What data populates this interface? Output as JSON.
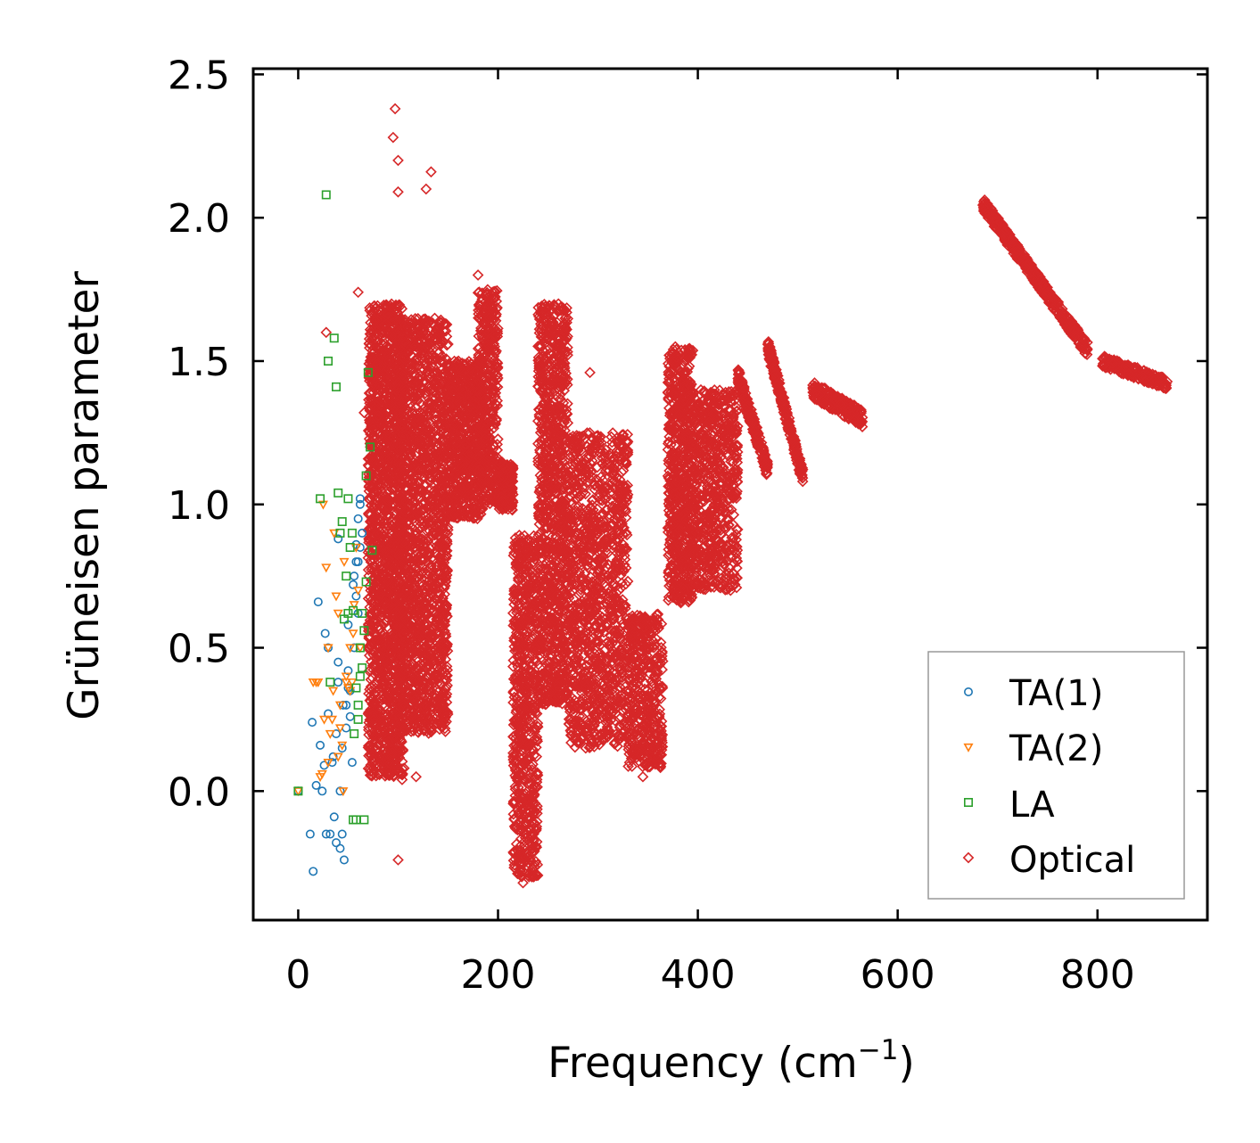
{
  "chart_data": {
    "type": "scatter",
    "title": "",
    "xlabel": "Frequency (cm",
    "xlabel_sup": "−1",
    "xlabel_tail": ")",
    "ylabel": "Grüneisen parameter",
    "xlim": [
      -45,
      910
    ],
    "ylim": [
      -0.45,
      2.52
    ],
    "xticks": [
      0,
      200,
      400,
      600,
      800
    ],
    "xtick_labels": [
      "0",
      "200",
      "400",
      "600",
      "800"
    ],
    "yticks": [
      0.0,
      0.5,
      1.0,
      1.5,
      2.0,
      2.5
    ],
    "ytick_labels": [
      "0.0",
      "0.5",
      "1.0",
      "1.5",
      "2.0",
      "2.5"
    ],
    "grid": false,
    "legend_position": "lower-right",
    "series": [
      {
        "name": "TA(1)",
        "color": "#1f77b4",
        "marker": "circle",
        "x": [
          0,
          12,
          15,
          18,
          20,
          24,
          27,
          30,
          32,
          35,
          38,
          40,
          42,
          45,
          48,
          50,
          52,
          55,
          58,
          60,
          62,
          64,
          14,
          28,
          34,
          40,
          46,
          52,
          56,
          60,
          62,
          30,
          38,
          44,
          50,
          58,
          36,
          42,
          48,
          54,
          22,
          26,
          40,
          44,
          50,
          56,
          62,
          60,
          58
        ],
        "y": [
          0.0,
          -0.15,
          -0.28,
          0.02,
          0.66,
          0.0,
          0.55,
          0.27,
          -0.15,
          0.12,
          -0.18,
          0.45,
          -0.2,
          0.3,
          0.22,
          0.58,
          0.35,
          0.72,
          0.8,
          0.95,
          1.0,
          0.9,
          0.24,
          -0.15,
          0.1,
          0.38,
          -0.24,
          0.26,
          0.5,
          0.62,
          0.85,
          0.5,
          0.2,
          0.15,
          0.42,
          0.86,
          -0.09,
          0.0,
          0.3,
          0.1,
          0.16,
          0.09,
          0.88,
          -0.15,
          0.36,
          0.75,
          1.02,
          0.8,
          0.68
        ]
      },
      {
        "name": "TA(2)",
        "color": "#ff7f0e",
        "marker": "triangle-down",
        "x": [
          0,
          15,
          18,
          22,
          25,
          28,
          30,
          32,
          35,
          38,
          40,
          42,
          45,
          48,
          50,
          52,
          55,
          58,
          60,
          62,
          20,
          26,
          34,
          40,
          46,
          52,
          36,
          44,
          48,
          56,
          24,
          30,
          42,
          54
        ],
        "y": [
          0.0,
          0.38,
          0.38,
          0.05,
          1.0,
          0.78,
          0.5,
          0.2,
          0.35,
          0.68,
          0.62,
          0.3,
          0.0,
          0.4,
          0.36,
          0.5,
          0.55,
          0.85,
          0.7,
          0.5,
          0.38,
          0.25,
          0.25,
          0.12,
          0.8,
          0.35,
          0.9,
          0.16,
          0.38,
          0.65,
          0.06,
          0.1,
          0.22,
          0.38
        ]
      },
      {
        "name": "LA",
        "color": "#2ca02c",
        "marker": "square",
        "x": [
          0,
          22,
          28,
          30,
          32,
          36,
          38,
          40,
          42,
          44,
          46,
          48,
          50,
          52,
          55,
          58,
          60,
          62,
          64,
          66,
          68,
          70,
          72,
          74,
          55,
          58,
          62,
          66,
          50,
          56,
          64,
          68,
          60,
          54
        ],
        "y": [
          0.0,
          1.02,
          2.08,
          1.5,
          0.38,
          1.58,
          1.41,
          1.04,
          0.9,
          0.94,
          0.6,
          0.75,
          1.02,
          0.85,
          -0.1,
          -0.1,
          0.3,
          0.5,
          0.62,
          -0.1,
          0.73,
          1.46,
          1.2,
          0.84,
          0.63,
          0.36,
          0.4,
          0.56,
          0.62,
          0.2,
          0.43,
          1.1,
          0.25,
          0.9
        ]
      },
      {
        "name": "Optical",
        "color": "#d62728",
        "marker": "diamond",
        "clusters": [
          {
            "x": [
              70,
              105
            ],
            "y": [
              0.05,
              1.7
            ],
            "n": 1800
          },
          {
            "x": [
              100,
              150
            ],
            "y": [
              0.2,
              1.65
            ],
            "n": 1800
          },
          {
            "x": [
              150,
              185
            ],
            "y": [
              0.95,
              1.5
            ],
            "n": 700
          },
          {
            "x": [
              180,
              200
            ],
            "y": [
              1.0,
              1.75
            ],
            "n": 400
          },
          {
            "x": [
              200,
              215
            ],
            "y": [
              0.98,
              1.15
            ],
            "n": 250
          },
          {
            "x": [
              215,
              240
            ],
            "y": [
              -0.3,
              0.9
            ],
            "n": 700
          },
          {
            "x": [
              240,
              270
            ],
            "y": [
              0.3,
              1.7
            ],
            "n": 1100
          },
          {
            "x": [
              270,
              330
            ],
            "y": [
              0.15,
              1.25
            ],
            "n": 1200
          },
          {
            "x": [
              330,
              365
            ],
            "y": [
              0.08,
              0.62
            ],
            "n": 450
          },
          {
            "x": [
              370,
              395
            ],
            "y": [
              0.65,
              1.55
            ],
            "n": 700
          },
          {
            "x": [
              395,
              440
            ],
            "y": [
              0.7,
              1.4
            ],
            "n": 700
          }
        ],
        "curves": [
          {
            "x": [
              440,
              470
            ],
            "y": [
              1.45,
              1.12
            ],
            "n": 200,
            "spread": 0.03
          },
          {
            "x": [
              470,
              505
            ],
            "y": [
              1.55,
              1.1
            ],
            "n": 240,
            "spread": 0.03
          },
          {
            "x": [
              515,
              565
            ],
            "y": [
              1.4,
              1.3
            ],
            "n": 200,
            "spread": 0.03
          },
          {
            "x": [
              685,
              790
            ],
            "y": [
              2.05,
              1.54
            ],
            "n": 450,
            "spread": 0.025
          },
          {
            "x": [
              805,
              870
            ],
            "y": [
              1.5,
              1.42
            ],
            "n": 200,
            "spread": 0.02
          }
        ],
        "outliers": {
          "x": [
            97,
            95,
            100,
            133,
            100,
            128,
            180,
            190,
            28,
            60,
            66,
            100,
            104,
            292,
            106,
            118,
            225,
            230,
            235,
            345
          ],
          "y": [
            2.38,
            2.28,
            2.2,
            2.16,
            2.09,
            2.1,
            1.8,
            1.72,
            1.6,
            1.74,
            1.32,
            -0.24,
            0.04,
            1.46,
            0.08,
            0.05,
            -0.32,
            -0.25,
            -0.2,
            0.05
          ]
        }
      }
    ]
  }
}
